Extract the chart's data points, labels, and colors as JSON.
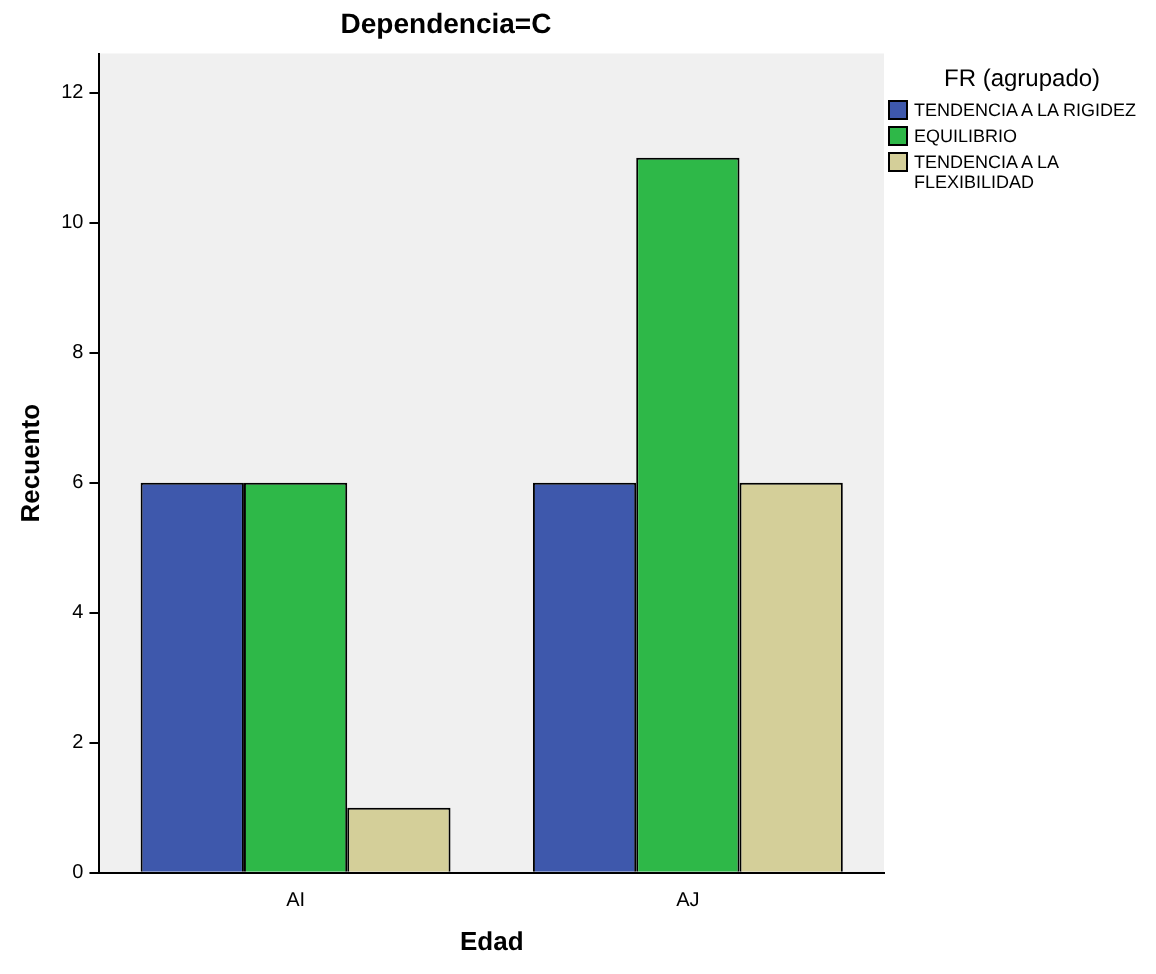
{
  "chart_data": {
    "type": "bar",
    "title": "Dependencia=C",
    "xlabel": "Edad",
    "ylabel": "Recuento",
    "legend_title": "FR (agrupado)",
    "categories": [
      "AI",
      "AJ"
    ],
    "series": [
      {
        "name": "TENDENCIA A LA RIGIDEZ",
        "color": "#3e58ac",
        "values": [
          6,
          6
        ]
      },
      {
        "name": "EQUILIBRIO",
        "color": "#2eb848",
        "values": [
          6,
          11
        ]
      },
      {
        "name": "TENDENCIA A LA FLEXIBILIDAD",
        "color": "#d4cf99",
        "values": [
          1,
          6
        ]
      }
    ],
    "ylim": [
      0,
      12.6
    ],
    "yticks": [
      0,
      2,
      4,
      6,
      8,
      10,
      12
    ],
    "grid": false,
    "legend": "top right"
  }
}
